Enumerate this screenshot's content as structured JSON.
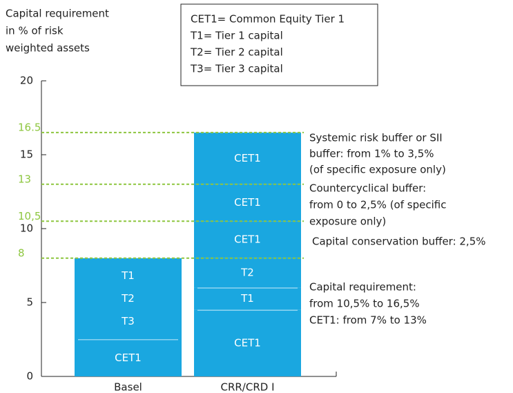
{
  "chart_data": {
    "type": "stacked_bar",
    "y_axis_label": [
      "Capital requirement",
      "in % of risk",
      "weighted assets"
    ],
    "legend_box": [
      "CET1= Common Equity Tier 1",
      "T1= Tier 1 capital",
      "T2= Tier 2 capital",
      "T3= Tier 3 capital"
    ],
    "ylim": [
      0,
      20
    ],
    "yticks": [
      0,
      5,
      10,
      15,
      20
    ],
    "color": "#1aa7e0",
    "ref_line_color": "#8dc63f",
    "ref_lines": [
      {
        "value": 8,
        "label": "8"
      },
      {
        "value": 10.5,
        "label": "10,5"
      },
      {
        "value": 13,
        "label": "13"
      },
      {
        "value": 16.5,
        "label": "16.5"
      }
    ],
    "bars": [
      {
        "category": "Basel",
        "segments": [
          {
            "labels": [
              "CET1"
            ],
            "value": 2.5,
            "line_above": true
          },
          {
            "labels": [
              "T1",
              "T2",
              "T3"
            ],
            "value": 5.5
          }
        ]
      },
      {
        "category": "CRR/CRD I",
        "segments": [
          {
            "labels": [
              "CET1"
            ],
            "value": 4.5,
            "line_above": true
          },
          {
            "labels": [
              "T1"
            ],
            "value": 1.5,
            "line_above": true
          },
          {
            "labels": [
              "T2"
            ],
            "value": 2
          },
          {
            "labels": [
              "CET1"
            ],
            "value": 2.5
          },
          {
            "labels": [
              "CET1"
            ],
            "value": 2.5
          },
          {
            "labels": [
              "CET1"
            ],
            "value": 3.5
          }
        ]
      }
    ],
    "annotations": [
      [
        "Systemic risk buffer or SII",
        "buffer: from 1% to 3,5%",
        "(of specific exposure only)"
      ],
      [
        "Countercyclical buffer:",
        "from 0 to 2,5% (of specific",
        "exposure only)"
      ],
      [
        "Capital conservation buffer: 2,5%"
      ],
      [
        "Capital requirement:",
        "from 10,5% to 16,5%",
        "CET1: from 7% to 13%"
      ]
    ]
  }
}
